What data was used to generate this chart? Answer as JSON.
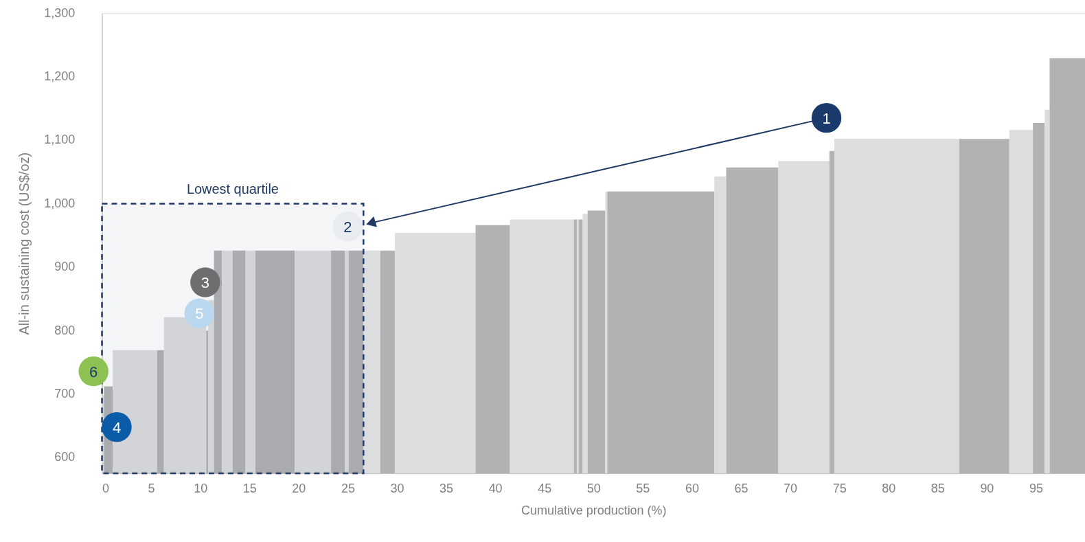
{
  "chart_data": {
    "type": "histogram",
    "xlabel": "Cumulative production (%)",
    "ylabel": "All-in sustaining cost (US$/oz)",
    "bins": [
      0,
      0.2,
      1.1,
      5.6,
      6.3,
      10.6,
      10.8,
      11.4,
      12.2,
      13.3,
      14.6,
      15.6,
      19.6,
      23.3,
      24.7,
      25.1,
      26.6,
      28.3,
      29.8,
      38.0,
      41.5,
      48.0,
      48.3,
      48.5,
      48.9,
      49.4,
      51.2,
      51.4,
      62.3,
      63.5,
      68.8,
      74.0,
      74.5,
      87.2,
      92.3,
      94.7,
      95.9,
      96.4,
      100
    ],
    "values": [
      698,
      712,
      769,
      769,
      821,
      800,
      848,
      926,
      926,
      926,
      926,
      926,
      926,
      926,
      926,
      926,
      926,
      926,
      954,
      966,
      975,
      975,
      975,
      975,
      984,
      989,
      1019,
      1019,
      1043,
      1057,
      1067,
      1083,
      1102,
      1102,
      1116,
      1127,
      1148,
      1229
    ],
    "colors": [
      "#dcdddf",
      "#b1b2b4",
      "#dcdddf",
      "#b1b2b4",
      "#dcdddf",
      "#b1b2b4",
      "#dcdddf",
      "#b1b2b4",
      "#dcdddf",
      "#b1b2b4",
      "#dcdddf",
      "#b1b2b4",
      "#dcdddf",
      "#b1b2b4",
      "#dcdddf",
      "#b1b2b4",
      "#dcdddf",
      "#b1b2b4",
      "#dcdddf",
      "#b1b2b4",
      "#dcdddf",
      "#b1b2b4",
      "#dcdddf",
      "#b1b2b4",
      "#dcdddf",
      "#b1b2b4",
      "#dcdddf",
      "#b1b2b4",
      "#dcdddf",
      "#b1b2b4",
      "#dcdddf",
      "#b1b2b4",
      "#dcdddf",
      "#b1b2b4",
      "#dcdddf",
      "#b1b2b4",
      "#dcdddf",
      "#b1b2b4"
    ],
    "xlim": [
      0,
      100
    ],
    "xticks": [
      0,
      5,
      10,
      15,
      20,
      25,
      30,
      35,
      40,
      45,
      50,
      55,
      60,
      65,
      70,
      75,
      80,
      85,
      90,
      95
    ],
    "ylim": [
      575,
      1300
    ],
    "yticks": [
      600,
      700,
      800,
      900,
      {
        "value": 1000,
        "label": "1,000"
      },
      {
        "value": 1100,
        "label": "1,100"
      },
      {
        "value": 1200,
        "label": "1,200"
      },
      {
        "value": 1300,
        "label": "1,300"
      }
    ],
    "grid": false,
    "bands": [
      {
        "axis": "x",
        "from": 0,
        "to": 26.6,
        "color": "#1f3864",
        "label": "Lowest quartile"
      }
    ],
    "annotations": [
      {
        "text": "1",
        "x": 73.7,
        "y": 1135
      },
      {
        "text": "2",
        "x": 25,
        "y": 964
      },
      {
        "text": "3",
        "x": 10.5,
        "y": 876
      },
      {
        "text": "4",
        "x": 1.5,
        "y": 648
      },
      {
        "text": "5",
        "x": 9.9,
        "y": 827
      },
      {
        "text": "6",
        "x": 0.6,
        "y": 712
      }
    ]
  }
}
